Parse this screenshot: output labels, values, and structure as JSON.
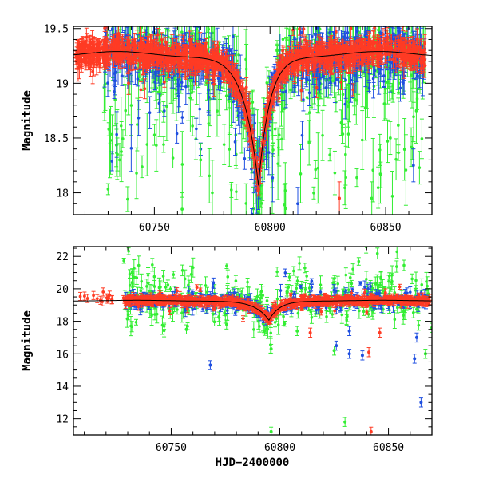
{
  "colors": {
    "g": "#33ee33",
    "b": "#1f4fe0",
    "r": "#ff3b24"
  },
  "chart_data": [
    {
      "type": "scatter",
      "id": "top",
      "xlabel": "",
      "ylabel": "Magnitude",
      "xlim": [
        60715,
        60870
      ],
      "ylim": [
        19.52,
        17.8
      ],
      "y_inverted": true,
      "xticks": [
        60750,
        60800,
        60850
      ],
      "yticks": [
        18,
        18.5,
        19,
        19.5
      ],
      "ytick_labels": [
        "18",
        "18.5",
        "19",
        "19.5"
      ],
      "grid": false,
      "model": "light curve peaking at 18.05 mag near 60795 over a 19.27 mag baseline",
      "series": [
        {
          "band": "g",
          "jd_range": [
            60728,
            60867
          ],
          "note": "highest scatter, many points above 18.5 mag"
        },
        {
          "band": "b",
          "jd_range": [
            60728,
            60867
          ]
        },
        {
          "band": "r",
          "jd_range": [
            60716,
            60867
          ]
        }
      ]
    },
    {
      "type": "scatter",
      "id": "bottom",
      "xlabel": "HJD−2400000",
      "ylabel": "Magnitude",
      "xlim": [
        60705,
        60870
      ],
      "ylim": [
        22.6,
        11.0
      ],
      "y_inverted": true,
      "xticks": [
        60750,
        60800,
        60850
      ],
      "yticks": [
        12,
        14,
        16,
        18,
        20,
        22
      ],
      "ytick_labels": [
        "12",
        "14",
        "16",
        "18",
        "20",
        "22"
      ],
      "grid": false,
      "outliers": [
        {
          "band": "g",
          "x": 60796,
          "y": 11.2
        },
        {
          "band": "g",
          "x": 60830,
          "y": 11.8
        },
        {
          "band": "r",
          "x": 60842,
          "y": 11.2
        },
        {
          "band": "b",
          "x": 60865,
          "y": 13.0
        },
        {
          "band": "b",
          "x": 60768,
          "y": 15.3
        },
        {
          "band": "b",
          "x": 60832,
          "y": 16.0
        },
        {
          "band": "b",
          "x": 60838,
          "y": 15.9
        },
        {
          "band": "b",
          "x": 60862,
          "y": 15.7
        },
        {
          "band": "b",
          "x": 60826,
          "y": 16.5
        },
        {
          "band": "g",
          "x": 60796,
          "y": 16.3
        },
        {
          "band": "g",
          "x": 60867,
          "y": 16.0
        },
        {
          "band": "g",
          "x": 60757,
          "y": 17.5
        },
        {
          "band": "r",
          "x": 60841,
          "y": 16.1
        },
        {
          "band": "r",
          "x": 60814,
          "y": 17.3
        },
        {
          "band": "r",
          "x": 60846,
          "y": 17.3
        },
        {
          "band": "b",
          "x": 60832,
          "y": 17.4
        },
        {
          "band": "b",
          "x": 60863,
          "y": 17.0
        },
        {
          "band": "g",
          "x": 60825,
          "y": 16.2
        },
        {
          "band": "g",
          "x": 60808,
          "y": 17.4
        },
        {
          "band": "g",
          "x": 60870,
          "y": 17.6
        }
      ]
    }
  ]
}
